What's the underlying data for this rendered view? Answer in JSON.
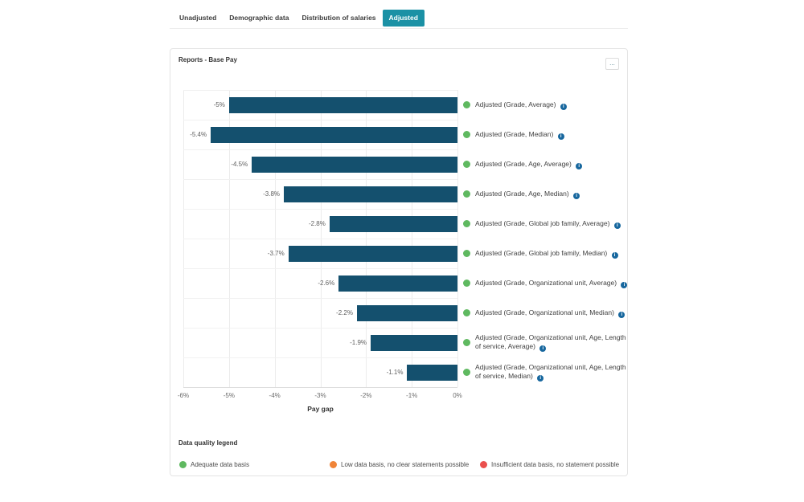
{
  "tabs": [
    {
      "label": "Unadjusted",
      "active": false
    },
    {
      "label": "Demographic data",
      "active": false
    },
    {
      "label": "Distribution of salaries",
      "active": false
    },
    {
      "label": "Adjusted",
      "active": true
    }
  ],
  "card": {
    "title": "Reports - Base Pay",
    "menu_label": "..."
  },
  "chart_data": {
    "type": "bar",
    "orientation": "horizontal",
    "title": "Reports - Base Pay",
    "xlabel": "Pay gap",
    "xlim": [
      -6,
      0
    ],
    "xticks": [
      "-6%",
      "-5%",
      "-4%",
      "-3%",
      "-2%",
      "-1%",
      "0%"
    ],
    "grid": true,
    "categories": [
      "Adjusted (Grade, Average)",
      "Adjusted (Grade, Median)",
      "Adjusted (Grade, Age, Average)",
      "Adjusted (Grade, Age, Median)",
      "Adjusted (Grade, Global job family, Average)",
      "Adjusted (Grade, Global job family, Median)",
      "Adjusted (Grade, Organizational unit, Average)",
      "Adjusted (Grade, Organizational unit, Median)",
      "Adjusted (Grade, Organizational unit, Age, Length of service, Average)",
      "Adjusted (Grade, Organizational unit, Age, Length of service, Median)"
    ],
    "values": [
      -5,
      -5.4,
      -4.5,
      -3.8,
      -2.8,
      -3.7,
      -2.6,
      -2.2,
      -1.9,
      -1.1
    ],
    "value_labels": [
      "-5%",
      "-5.4%",
      "-4.5%",
      "-3.8%",
      "-2.8%",
      "-3.7%",
      "-2.6%",
      "-2.2%",
      "-1.9%",
      "-1.1%"
    ],
    "bar_color": "#14506e",
    "data_quality_dot_color": "#5fb960",
    "data_quality": [
      "adequate",
      "adequate",
      "adequate",
      "adequate",
      "adequate",
      "adequate",
      "adequate",
      "adequate",
      "adequate",
      "adequate"
    ],
    "info_icon_glyph": "i"
  },
  "legend": {
    "title": "Data quality legend",
    "items": [
      {
        "label": "Adequate data basis",
        "color": "#5fb960"
      },
      {
        "label": "Low data basis, no clear statements possible",
        "color": "#f08438"
      },
      {
        "label": "Insufficient data basis, no statement possible",
        "color": "#ea4f4d"
      }
    ]
  }
}
